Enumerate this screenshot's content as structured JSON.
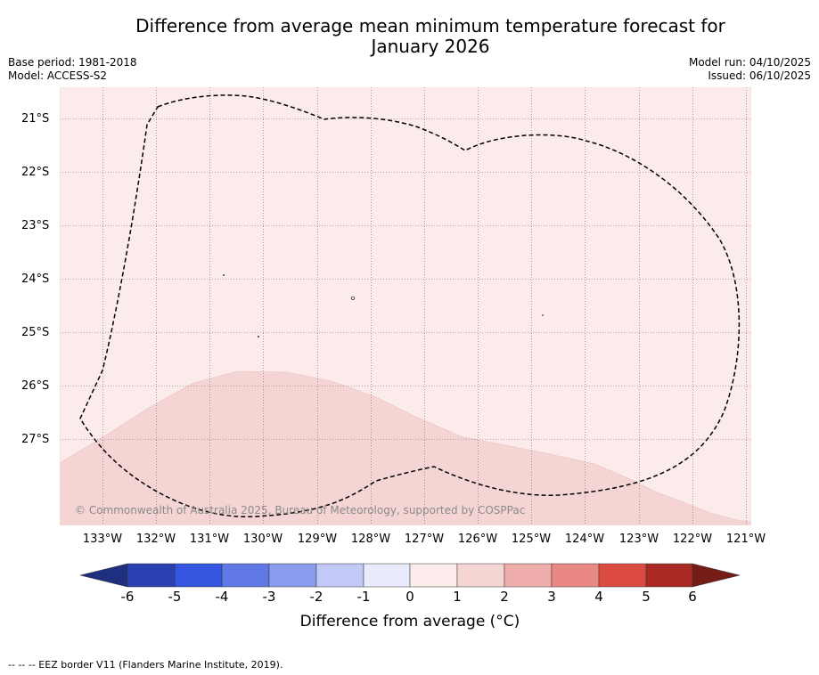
{
  "title_line1": "Difference from average mean minimum temperature forecast for",
  "title_line2": "January 2026",
  "meta": {
    "base_period": "Base period: 1981-2018",
    "model": "Model: ACCESS-S2",
    "model_run": "Model run: 04/10/2025",
    "issued": "Issued: 06/10/2025"
  },
  "map": {
    "lat_labels": [
      "21°S",
      "22°S",
      "23°S",
      "24°S",
      "25°S",
      "26°S",
      "27°S"
    ],
    "lon_labels": [
      "133°W",
      "132°W",
      "131°W",
      "130°W",
      "129°W",
      "128°W",
      "127°W",
      "126°W",
      "125°W",
      "124°W",
      "123°W",
      "122°W",
      "121°W"
    ],
    "copyright": "© Commonwealth of Australia 2025, Bureau of Meteorology, supported by COSPPac",
    "colors": {
      "zone_0_1": "#fbebea",
      "zone_1_2": "#f4d5d4",
      "gridline": "#7a5a6a"
    }
  },
  "colorbar": {
    "ticks": [
      "-6",
      "-5",
      "-4",
      "-3",
      "-2",
      "-1",
      "0",
      "1",
      "2",
      "3",
      "4",
      "5",
      "6"
    ],
    "colors": [
      "#1f2f7f",
      "#2a40b0",
      "#3355e0",
      "#5f78e6",
      "#8a9ced",
      "#c2c9f6",
      "#e8ebfb",
      "#fbebea",
      "#f4d5d4",
      "#eeadab",
      "#e98884",
      "#dc4b42",
      "#ac2a24",
      "#751c17"
    ],
    "label": "Difference from average (°C)"
  },
  "footnote": "-- -- -- EEZ border V11 (Flanders Marine Institute, 2019)."
}
